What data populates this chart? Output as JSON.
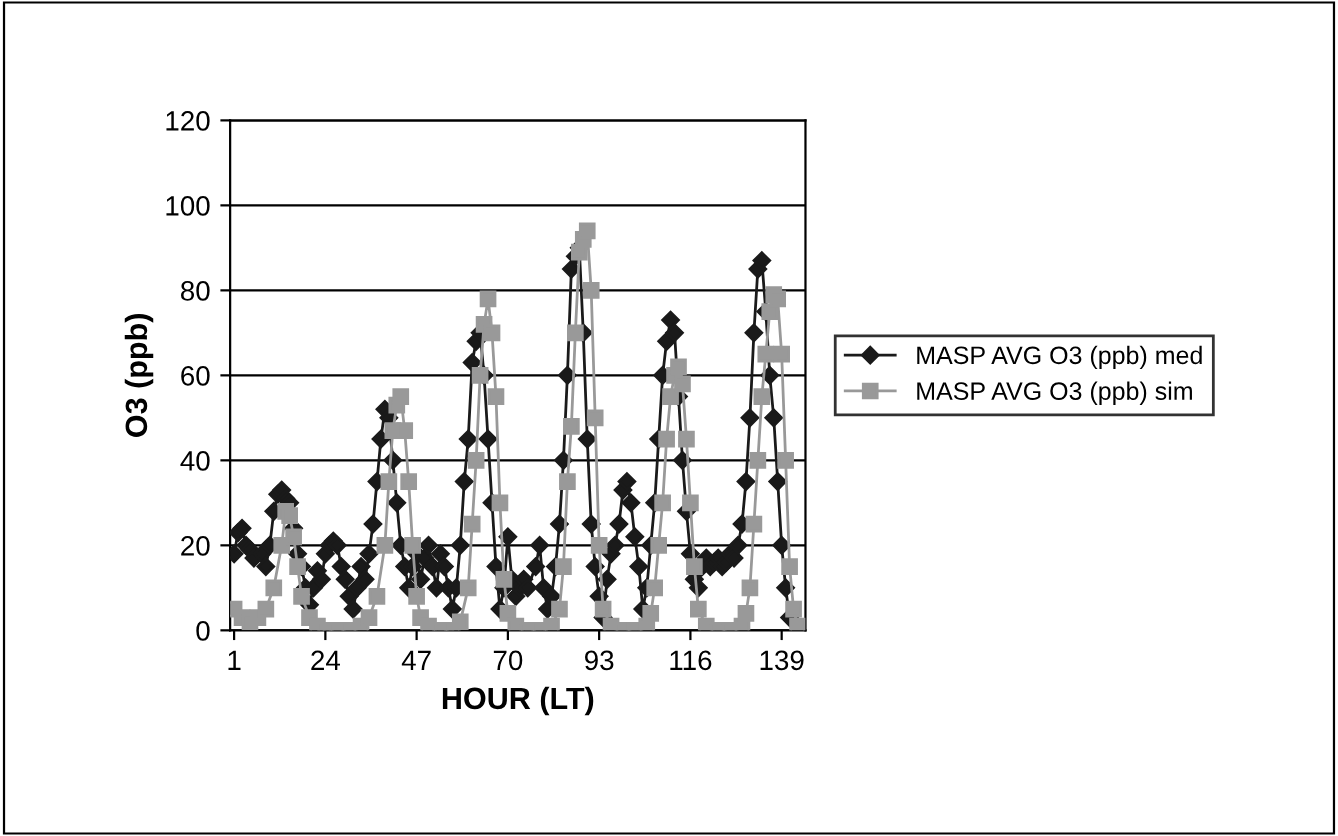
{
  "chart_data": {
    "type": "line",
    "xlabel": "HOUR (LT)",
    "ylabel": "O3 (ppb)",
    "xlim": [
      0,
      145
    ],
    "xticks": [
      1,
      24,
      47,
      70,
      93,
      116,
      139
    ],
    "ylim": [
      0,
      120
    ],
    "yticks": [
      0,
      20,
      40,
      60,
      80,
      100,
      120
    ],
    "grid": "y",
    "legend": "right",
    "series": [
      {
        "name": "MASP AVG O3 (ppb) med",
        "color": "#1a1a1a",
        "marker": "diamond",
        "x": [
          1,
          2,
          3,
          4,
          5,
          6,
          8,
          9,
          10,
          11,
          12,
          13,
          14,
          15,
          16,
          17,
          18,
          19,
          20,
          21,
          22,
          23,
          24,
          25,
          26,
          27,
          28,
          29,
          30,
          31,
          32,
          33,
          34,
          35,
          36,
          37,
          38,
          39,
          40,
          41,
          42,
          43,
          44,
          45,
          46,
          47,
          48,
          49,
          50,
          51,
          52,
          53,
          54,
          55,
          56,
          57,
          58,
          59,
          60,
          61,
          62,
          63,
          64,
          65,
          66,
          67,
          68,
          69,
          70,
          71,
          72,
          73,
          74,
          75,
          77,
          78,
          79,
          80,
          81,
          82,
          83,
          84,
          85,
          86,
          87,
          88,
          89,
          90,
          91,
          92,
          93,
          94,
          95,
          96,
          97,
          98,
          99,
          100,
          101,
          102,
          103,
          104,
          105,
          106,
          107,
          108,
          109,
          110,
          111,
          112,
          113,
          114,
          115,
          116,
          117,
          118,
          119,
          120,
          121,
          122,
          123,
          124,
          125,
          126,
          127,
          128,
          129,
          130,
          131,
          132,
          133,
          134,
          135,
          136,
          137,
          138,
          139,
          140,
          141
        ],
        "values": [
          18,
          23,
          24,
          20,
          19,
          17,
          18,
          15,
          20,
          28,
          32,
          33,
          31,
          30,
          24,
          18,
          15,
          10,
          6,
          10,
          14,
          12,
          18,
          20,
          21,
          20,
          15,
          12,
          8,
          5,
          10,
          15,
          12,
          18,
          25,
          35,
          45,
          52,
          50,
          40,
          30,
          20,
          15,
          10,
          15,
          18,
          12,
          17,
          20,
          15,
          10,
          18,
          15,
          10,
          5,
          10,
          20,
          35,
          45,
          63,
          68,
          70,
          60,
          45,
          30,
          15,
          5,
          10,
          22,
          12,
          8,
          10,
          12,
          10,
          15,
          20,
          10,
          5,
          8,
          15,
          25,
          40,
          60,
          85,
          88,
          90,
          70,
          45,
          25,
          15,
          8,
          3,
          12,
          18,
          20,
          25,
          33,
          35,
          30,
          22,
          15,
          5,
          10,
          20,
          30,
          45,
          60,
          68,
          73,
          70,
          55,
          40,
          28,
          18,
          12,
          10,
          15,
          17,
          15,
          16,
          17,
          15,
          16,
          18,
          17,
          20,
          25,
          35,
          50,
          70,
          85,
          87,
          75,
          60,
          50,
          35,
          20,
          10,
          3
        ]
      },
      {
        "name": "MASP AVG O3 (ppb) sim",
        "color": "#999999",
        "marker": "square",
        "x": [
          1,
          3,
          5,
          7,
          9,
          11,
          13,
          14,
          15,
          16,
          17,
          18,
          20,
          22,
          24,
          27,
          30,
          33,
          35,
          37,
          39,
          40,
          41,
          42,
          43,
          44,
          45,
          46,
          47,
          48,
          50,
          53,
          56,
          58,
          60,
          61,
          62,
          63,
          64,
          65,
          66,
          67,
          68,
          69,
          70,
          72,
          75,
          78,
          81,
          83,
          84,
          85,
          86,
          87,
          88,
          89,
          90,
          91,
          92,
          93,
          94,
          96,
          99,
          102,
          105,
          106,
          107,
          108,
          109,
          110,
          111,
          112,
          113,
          114,
          115,
          116,
          117,
          118,
          120,
          123,
          126,
          129,
          130,
          131,
          132,
          133,
          134,
          135,
          136,
          137,
          138,
          139,
          140,
          141,
          142,
          143
        ],
        "values": [
          5,
          3,
          2,
          3,
          5,
          10,
          20,
          28,
          27,
          22,
          15,
          8,
          3,
          1,
          0,
          0,
          0,
          1,
          3,
          8,
          20,
          35,
          47,
          53,
          55,
          47,
          35,
          20,
          8,
          3,
          1,
          0,
          0,
          2,
          10,
          25,
          40,
          60,
          72,
          78,
          70,
          55,
          30,
          12,
          4,
          1,
          0,
          0,
          1,
          5,
          15,
          35,
          48,
          70,
          89,
          92,
          94,
          80,
          50,
          20,
          5,
          1,
          0,
          0,
          1,
          4,
          10,
          20,
          30,
          45,
          55,
          60,
          62,
          58,
          45,
          30,
          15,
          5,
          1,
          0,
          0,
          1,
          4,
          10,
          25,
          40,
          55,
          65,
          75,
          79,
          78,
          65,
          40,
          15,
          5,
          1
        ]
      }
    ]
  }
}
